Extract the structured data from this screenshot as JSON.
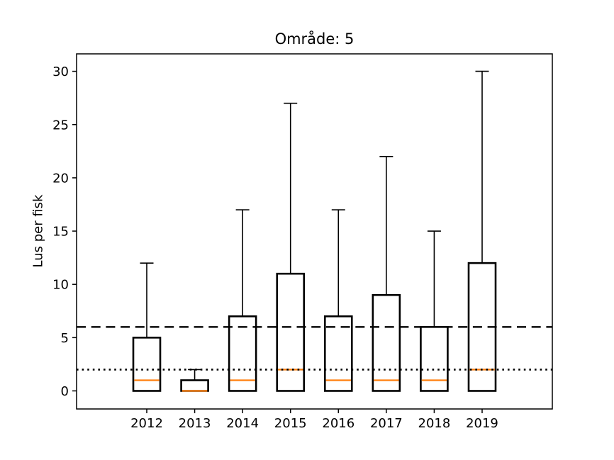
{
  "figure": {
    "background": "#ffffff"
  },
  "chart_data": {
    "type": "boxplot",
    "title": "Område: 5",
    "ylabel": "Lus per fisk",
    "xlabel": "",
    "categories": [
      "2012",
      "2013",
      "2014",
      "2015",
      "2016",
      "2017",
      "2018",
      "2019"
    ],
    "yticks": [
      0,
      5,
      10,
      15,
      20,
      25,
      30
    ],
    "ylim": [
      -1.7,
      31.7
    ],
    "grid": false,
    "legend": false,
    "series": [
      {
        "category": "2012",
        "whisker_low": 0,
        "q1": 0,
        "median": 1,
        "q3": 5,
        "whisker_high": 12
      },
      {
        "category": "2013",
        "whisker_low": 0,
        "q1": 0,
        "median": 0,
        "q3": 1,
        "whisker_high": 2
      },
      {
        "category": "2014",
        "whisker_low": 0,
        "q1": 0,
        "median": 1,
        "q3": 7,
        "whisker_high": 17
      },
      {
        "category": "2015",
        "whisker_low": 0,
        "q1": 0,
        "median": 2,
        "q3": 11,
        "whisker_high": 27
      },
      {
        "category": "2016",
        "whisker_low": 0,
        "q1": 0,
        "median": 1,
        "q3": 7,
        "whisker_high": 17
      },
      {
        "category": "2017",
        "whisker_low": 0,
        "q1": 0,
        "median": 1,
        "q3": 9,
        "whisker_high": 22
      },
      {
        "category": "2018",
        "whisker_low": 0,
        "q1": 0,
        "median": 1,
        "q3": 6,
        "whisker_high": 15
      },
      {
        "category": "2019",
        "whisker_low": 0,
        "q1": 0,
        "median": 2,
        "q3": 12,
        "whisker_high": 30
      }
    ],
    "reference_lines": [
      {
        "value": 6,
        "style": "dashed",
        "color": "#000000"
      },
      {
        "value": 2,
        "style": "dotted",
        "color": "#000000"
      }
    ],
    "colors": {
      "box_edge": "#000000",
      "median": "#ff7f0e",
      "axis": "#000000",
      "background": "#ffffff"
    }
  }
}
